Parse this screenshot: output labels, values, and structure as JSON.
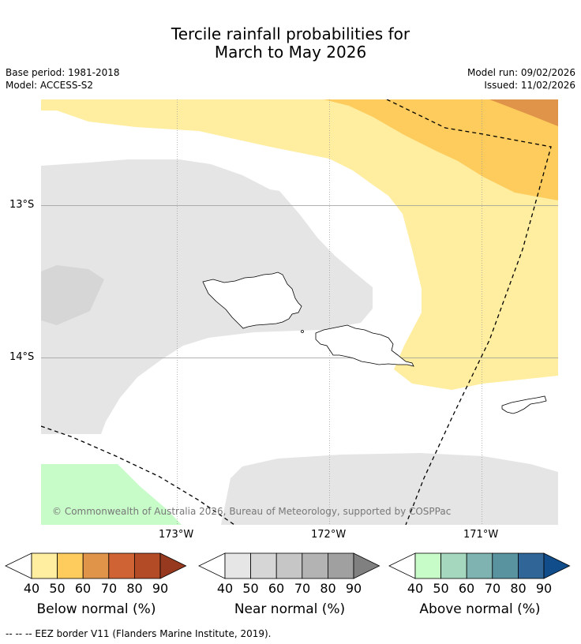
{
  "title": {
    "line1": "Tercile rainfall probabilities for",
    "line2": "March to May 2026"
  },
  "meta": {
    "base_period": "Base period: 1981-2018",
    "model": "Model: ACCESS-S2",
    "model_run": "Model run: 09/02/2026",
    "issued": "Issued: 11/02/2026"
  },
  "map": {
    "lat_labels": [
      "13°S",
      "14°S"
    ],
    "lon_labels": [
      "173°W",
      "172°W",
      "171°W"
    ],
    "copyright": "© Commonwealth of Australia 2026, Bureau of Meteorology, supported by COSPPac",
    "colors": {
      "below_40": "#ffeda0",
      "below_50": "#fecc5c",
      "below_60": "#e0944a",
      "near_40": "#e5e5e5",
      "near_50": "#d6d6d6",
      "above_40": "#c7fcc9"
    }
  },
  "colorbars": {
    "ticks": [
      "40",
      "50",
      "60",
      "70",
      "80",
      "90"
    ],
    "below": {
      "label": "Below normal (%)",
      "colors": [
        "#ffeda0",
        "#fecc5c",
        "#e0944a",
        "#cf6333",
        "#b34b27",
        "#97391f"
      ]
    },
    "near": {
      "label": "Near normal (%)",
      "colors": [
        "#e6e6e6",
        "#d6d6d6",
        "#c6c6c6",
        "#b3b3b3",
        "#a0a0a0",
        "#808080"
      ]
    },
    "above": {
      "label": "Above normal (%)",
      "colors": [
        "#c7fcc9",
        "#a5d7bf",
        "#7fb3b1",
        "#5a93a0",
        "#2f6697",
        "#104d8a"
      ]
    }
  },
  "footnote": "--  --  -- EEZ border V11 (Flanders Marine Institute, 2019)."
}
